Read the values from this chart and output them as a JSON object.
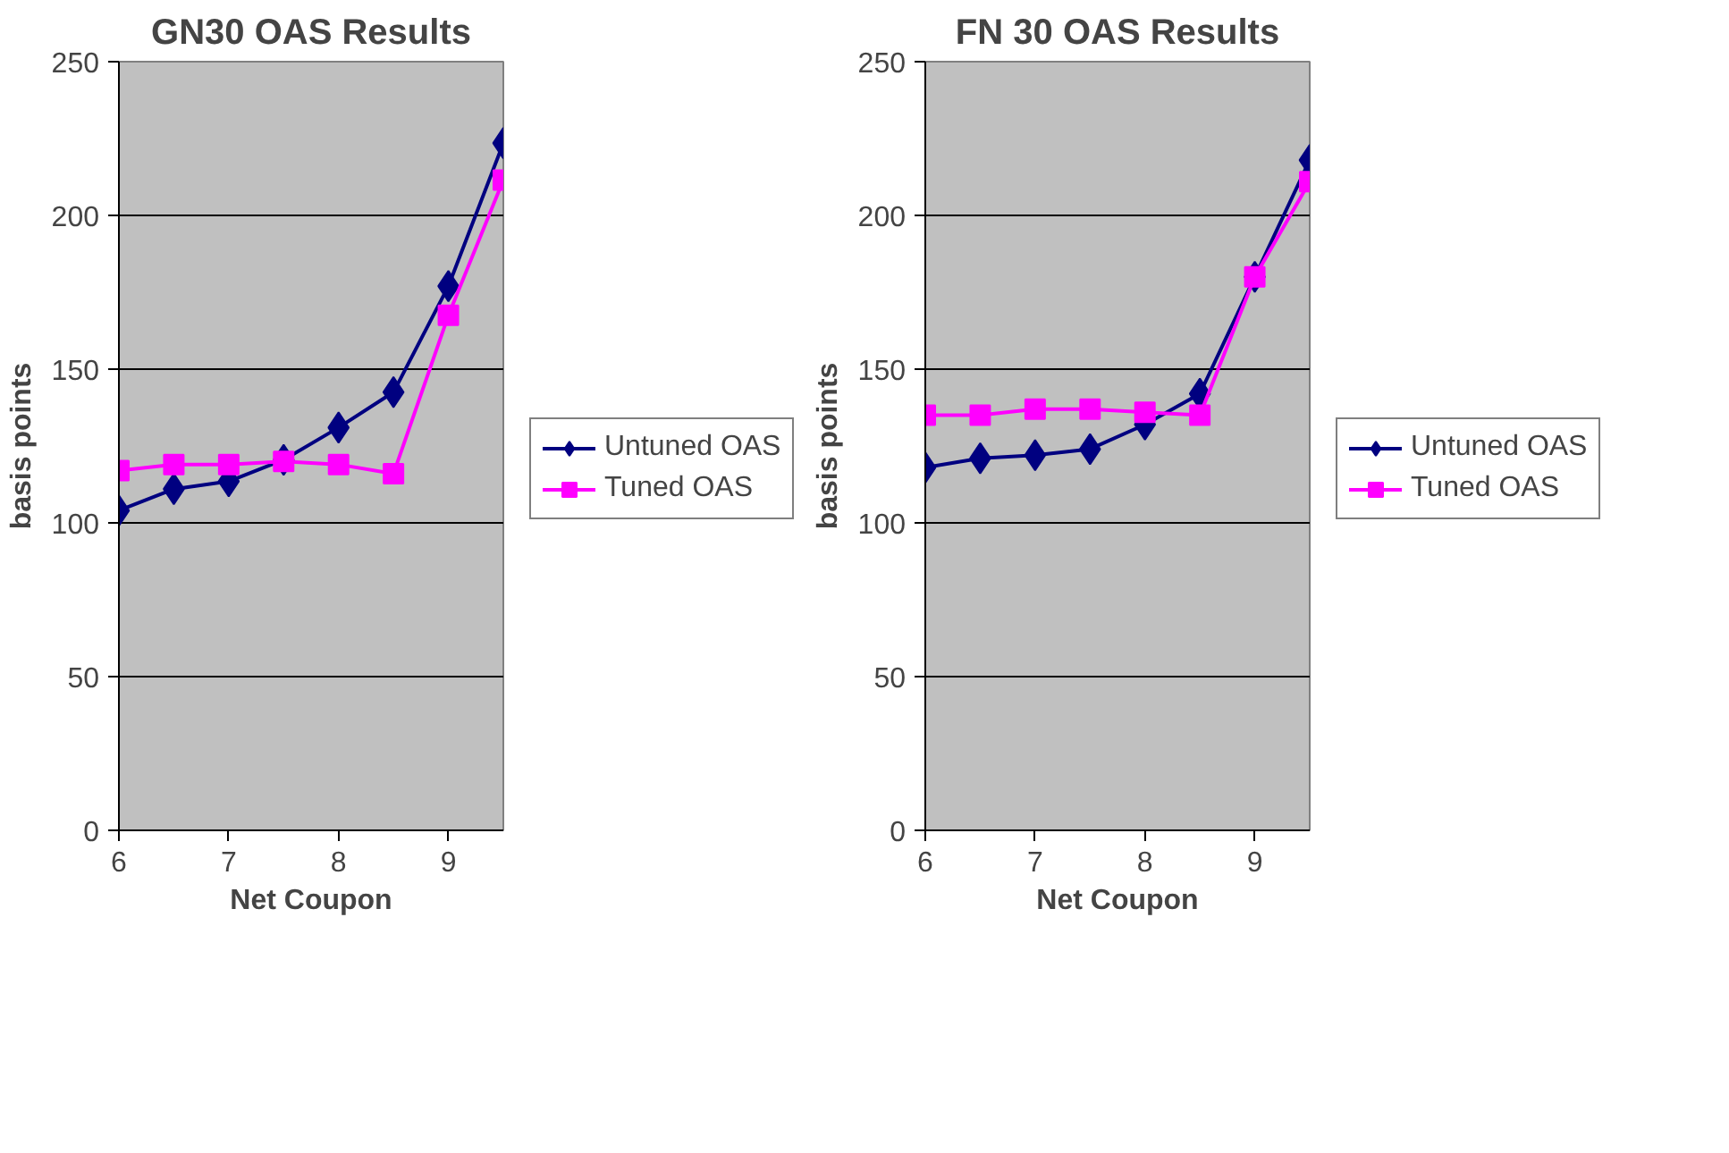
{
  "chart_data": [
    {
      "type": "line",
      "title": "GN30 OAS Results",
      "xlabel": "Net Coupon",
      "ylabel": "basis points",
      "categories": [
        "6",
        null,
        "7",
        null,
        "8",
        null,
        "9",
        null
      ],
      "ylim": [
        0,
        250
      ],
      "yticks": [
        0,
        50,
        100,
        150,
        200,
        250
      ],
      "grid": "y",
      "legend": "right",
      "line_style": "solid",
      "series": [
        {
          "name": "Untuned OAS",
          "color": "#000080",
          "marker": "diamond",
          "values": [
            104,
            111,
            113.5,
            120.5,
            131,
            142.5,
            177,
            223.5
          ]
        },
        {
          "name": "Tuned OAS",
          "color": "#ff00ff",
          "marker": "square",
          "values": [
            117,
            119,
            119,
            120,
            119,
            116,
            167.5,
            211.5
          ]
        }
      ]
    },
    {
      "type": "line",
      "title": "FN 30 OAS Results",
      "xlabel": "Net Coupon",
      "ylabel": "basis points",
      "categories": [
        "6",
        null,
        "7",
        null,
        "8",
        null,
        "9",
        null
      ],
      "ylim": [
        0,
        250
      ],
      "yticks": [
        0,
        50,
        100,
        150,
        200,
        250
      ],
      "grid": "y",
      "legend": "right",
      "line_style": "solid",
      "series": [
        {
          "name": "Untuned OAS",
          "color": "#000080",
          "marker": "diamond",
          "values": [
            118,
            121,
            122,
            124,
            132,
            142,
            180,
            218
          ]
        },
        {
          "name": "Tuned OAS",
          "color": "#ff00ff",
          "marker": "square",
          "values": [
            135,
            135,
            137,
            137,
            136,
            135,
            180,
            211
          ]
        }
      ]
    }
  ]
}
